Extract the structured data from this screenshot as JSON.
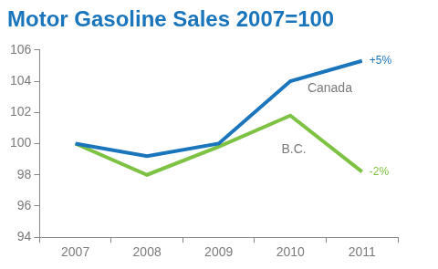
{
  "chart_data": {
    "type": "line",
    "title": "Motor Gasoline Sales 2007=100",
    "categories": [
      "2007",
      "2008",
      "2009",
      "2010",
      "2011"
    ],
    "series": [
      {
        "name": "Canada",
        "color": "#1b75bc",
        "values": [
          100,
          99.2,
          100,
          104,
          105.3
        ]
      },
      {
        "name": "B.C.",
        "color": "#7dc242",
        "values": [
          100,
          98,
          99.8,
          101.8,
          98.2
        ]
      }
    ],
    "annotations": [
      {
        "series": "Canada",
        "text": "+5%"
      },
      {
        "series": "B.C.",
        "text": "-2%"
      }
    ],
    "ylim": [
      94,
      106
    ],
    "yticks": [
      94,
      96,
      98,
      100,
      102,
      104,
      106
    ],
    "grid": false
  }
}
